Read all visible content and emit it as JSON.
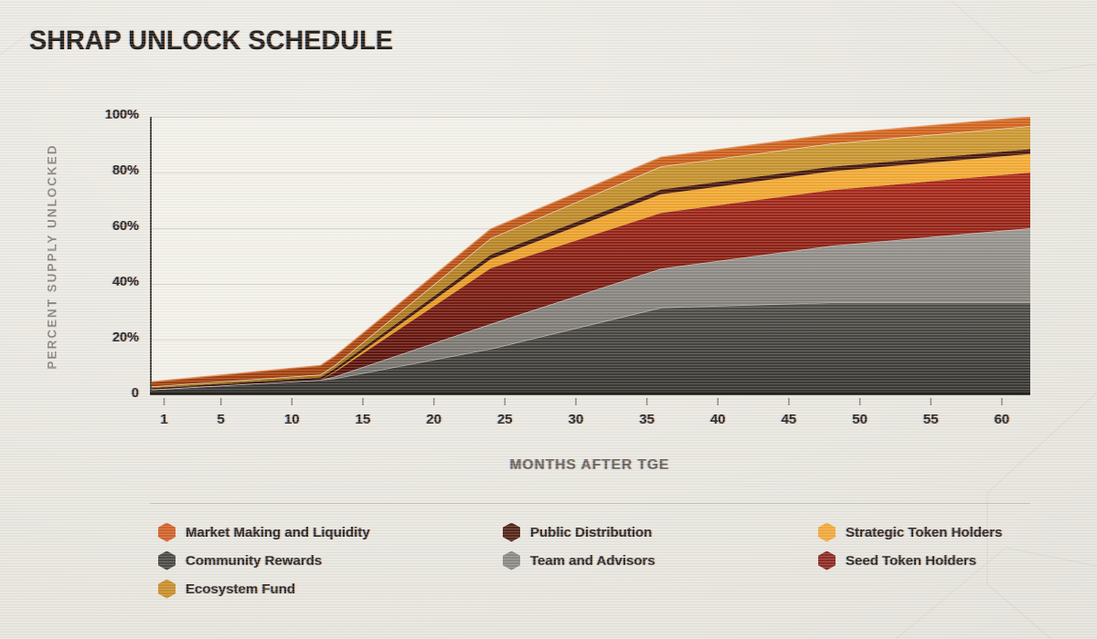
{
  "title": "SHRAP UNLOCK SCHEDULE",
  "chart_data": {
    "type": "area",
    "stacked": true,
    "title": "SHRAP UNLOCK SCHEDULE",
    "xlabel": "MONTHS AFTER TGE",
    "ylabel": "PERCENT SUPPLY UNLOCKED",
    "xlim": [
      0,
      62
    ],
    "ylim": [
      0,
      100
    ],
    "grid": "horizontal",
    "legend_position": "bottom",
    "x_ticks": [
      1,
      5,
      10,
      15,
      20,
      25,
      30,
      35,
      40,
      45,
      50,
      55,
      60
    ],
    "y_ticks": [
      {
        "label": "100%",
        "value": 100
      },
      {
        "label": "80%",
        "value": 80
      },
      {
        "label": "60%",
        "value": 60
      },
      {
        "label": "40%",
        "value": 40
      },
      {
        "label": "20%",
        "value": 20
      },
      {
        "label": "0",
        "value": 0
      }
    ],
    "x": [
      0,
      12,
      13,
      24,
      36,
      48,
      62
    ],
    "series": [
      {
        "name": "Community Rewards",
        "key": "community-rewards",
        "values": [
          2.0,
          5.5,
          6.0,
          16.7,
          31.5,
          33.3,
          33.3
        ],
        "color_top": "#504E49",
        "color_bottom": "#363430",
        "edge": "#C9C6BE"
      },
      {
        "name": "Team and Advisors",
        "key": "team-and-advisors",
        "values": [
          0,
          0,
          0.7,
          8.9,
          14.0,
          20.4,
          26.7
        ],
        "color_top": "#999590",
        "color_bottom": "#6F6C66",
        "edge": "#D3CFC7"
      },
      {
        "name": "Seed Token Holders",
        "key": "seed-token-holders",
        "values": [
          0,
          0,
          1.5,
          20.0,
          20.0,
          20.0,
          20.0
        ],
        "color_top": "#AE2A1B",
        "color_bottom": "#4F100A",
        "edge": ""
      },
      {
        "name": "Strategic Token Holders",
        "key": "strategic-token-holders",
        "values": [
          0,
          0,
          0.3,
          3.3,
          6.7,
          6.7,
          6.7
        ],
        "color_top": "#F4AC35",
        "color_bottom": "#DE8F17",
        "edge": ""
      },
      {
        "name": "Public Distribution",
        "key": "public-distribution",
        "values": [
          0.5,
          0.9,
          1.0,
          1.6,
          1.7,
          1.7,
          1.7
        ],
        "color_top": "#4A1A0C",
        "color_bottom": "#38130A",
        "edge": ""
      },
      {
        "name": "Ecosystem Fund",
        "key": "ecosystem-fund",
        "values": [
          0.6,
          1.0,
          1.2,
          5.9,
          8.3,
          8.3,
          8.3
        ],
        "color_top": "#CE9A33",
        "color_bottom": "#9F6C16",
        "edge": "#F0E5C6"
      },
      {
        "name": "Market Making and Liquidity",
        "key": "market-making-and-liquidity",
        "values": [
          1.7,
          3.3,
          3.3,
          3.3,
          3.3,
          3.3,
          3.3
        ],
        "color_top": "#D4661F",
        "color_bottom": "#A03E0D",
        "edge": "#E28A50"
      }
    ],
    "final_unlocked_pct": {
      "Community Rewards": 33.3,
      "Team and Advisors": 26.7,
      "Seed Token Holders": 20.0,
      "Strategic Token Holders": 6.7,
      "Public Distribution": 1.7,
      "Ecosystem Fund": 8.3,
      "Market Making and Liquidity": 3.3
    }
  },
  "legend": {
    "items": [
      {
        "label": "Market Making and Liquidity",
        "color": "#D2622A"
      },
      {
        "label": "Public Distribution",
        "color": "#53241A"
      },
      {
        "label": "Strategic Token Holders",
        "color": "#F2A93B"
      },
      {
        "label": "Community Rewards",
        "color": "#4C4A46"
      },
      {
        "label": "Team and Advisors",
        "color": "#8C8A86"
      },
      {
        "label": "Seed Token Holders",
        "color": "#8E2B24"
      },
      {
        "label": "Ecosystem Fund",
        "color": "#C98F2D"
      }
    ]
  }
}
